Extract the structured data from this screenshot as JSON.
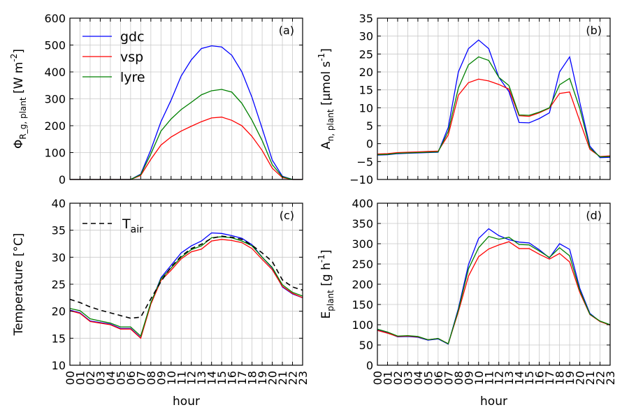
{
  "chart_data": [
    {
      "id": "a",
      "type": "line",
      "panel_label": "(a)",
      "ylabel": "Φ_{R_g, plant} [W m^{-2}]",
      "xlabel": "",
      "ylim": [
        0,
        600
      ],
      "yticks": [
        0,
        100,
        200,
        300,
        400,
        500,
        600
      ],
      "grid": true,
      "legend": "top-left",
      "x": [
        0,
        1,
        2,
        3,
        4,
        5,
        6,
        7,
        8,
        9,
        10,
        11,
        12,
        13,
        14,
        15,
        16,
        17,
        18,
        19,
        20,
        21,
        22,
        23
      ],
      "series": [
        {
          "name": "gdc",
          "color": "#0000ff",
          "values": [
            0,
            0,
            0,
            0,
            0,
            0,
            0,
            20,
            110,
            215,
            295,
            385,
            445,
            487,
            497,
            493,
            462,
            400,
            305,
            190,
            72,
            12,
            0,
            0
          ]
        },
        {
          "name": "vsp",
          "color": "#ff0000",
          "values": [
            0,
            0,
            0,
            0,
            0,
            0,
            0,
            15,
            75,
            128,
            158,
            180,
            198,
            215,
            229,
            232,
            220,
            200,
            160,
            108,
            42,
            7,
            0,
            0
          ]
        },
        {
          "name": "lyre",
          "color": "#008000",
          "values": [
            0,
            0,
            0,
            0,
            0,
            0,
            0,
            18,
            95,
            180,
            225,
            260,
            287,
            315,
            330,
            335,
            325,
            283,
            220,
            145,
            55,
            10,
            0,
            0
          ]
        }
      ]
    },
    {
      "id": "b",
      "type": "line",
      "panel_label": "(b)",
      "ylabel": "A_{n, plant} [μmol s^{-1}]",
      "xlabel": "",
      "ylim": [
        -10,
        35
      ],
      "yticks": [
        -10,
        -5,
        0,
        5,
        10,
        15,
        20,
        25,
        30,
        35
      ],
      "grid": true,
      "x": [
        0,
        1,
        2,
        3,
        4,
        5,
        6,
        7,
        8,
        9,
        10,
        11,
        12,
        13,
        14,
        15,
        16,
        17,
        18,
        19,
        20,
        21,
        22,
        23
      ],
      "series": [
        {
          "name": "gdc",
          "color": "#0000ff",
          "values": [
            -3.2,
            -3.1,
            -2.8,
            -2.7,
            -2.6,
            -2.5,
            -2.4,
            4.5,
            20,
            26.5,
            28.9,
            26.5,
            18.5,
            14.5,
            5.9,
            5.8,
            7,
            8.6,
            20,
            24.2,
            11.5,
            -0.7,
            -3.9,
            -3.8
          ]
        },
        {
          "name": "vsp",
          "color": "#ff0000",
          "values": [
            -2.9,
            -2.8,
            -2.5,
            -2.4,
            -2.3,
            -2.2,
            -2.1,
            2.4,
            13.5,
            17,
            18,
            17.5,
            16.5,
            15.2,
            7.8,
            7.6,
            8.6,
            9.9,
            14,
            14.4,
            6.3,
            -1.6,
            -3.6,
            -3.4
          ]
        },
        {
          "name": "lyre",
          "color": "#008000",
          "values": [
            -3.1,
            -3.0,
            -2.7,
            -2.6,
            -2.5,
            -2.4,
            -2.3,
            3.4,
            15.5,
            22,
            24.2,
            23.2,
            18.5,
            16.2,
            8,
            7.9,
            8.8,
            10,
            16.4,
            18.2,
            9.8,
            -1.2,
            -3.7,
            -3.6
          ]
        }
      ]
    },
    {
      "id": "c",
      "type": "line",
      "panel_label": "(c)",
      "ylabel": "Temperature [°C]",
      "xlabel": "hour",
      "ylim": [
        10,
        40
      ],
      "yticks": [
        10,
        15,
        20,
        25,
        30,
        35,
        40
      ],
      "grid": true,
      "legend": "top-left",
      "x": [
        0,
        1,
        2,
        3,
        4,
        5,
        6,
        7,
        8,
        9,
        10,
        11,
        12,
        13,
        14,
        15,
        16,
        17,
        18,
        19,
        20,
        21,
        22,
        23
      ],
      "series": [
        {
          "name": "gdc",
          "color": "#0000ff",
          "values": [
            20.2,
            19.7,
            18.2,
            17.9,
            17.6,
            16.8,
            16.8,
            15.1,
            21.5,
            26.2,
            28.5,
            30.8,
            32.1,
            33,
            34.5,
            34.4,
            34,
            33.5,
            32.3,
            30,
            28,
            24.5,
            23.2,
            22.5
          ]
        },
        {
          "name": "vsp",
          "color": "#ff0000",
          "values": [
            20.1,
            19.6,
            18.1,
            17.8,
            17.5,
            16.7,
            16.7,
            15.0,
            21.3,
            25.7,
            27.6,
            29.7,
            31,
            31.5,
            33,
            33.3,
            33.1,
            32.7,
            31.6,
            29.6,
            27.7,
            24.6,
            23.3,
            22.5
          ]
        },
        {
          "name": "lyre",
          "color": "#008000",
          "values": [
            20.5,
            20.1,
            18.6,
            18.2,
            17.8,
            17.1,
            17.1,
            15.4,
            21.6,
            26,
            28,
            30,
            31.4,
            32.1,
            33.6,
            33.8,
            33.6,
            33,
            32.1,
            30,
            28.1,
            24.9,
            23.5,
            22.8
          ]
        },
        {
          "name": "T_air",
          "color": "#000000",
          "dashed": true,
          "values": [
            22.2,
            21.6,
            20.8,
            20.2,
            19.7,
            19.2,
            18.7,
            18.9,
            22.3,
            25.5,
            28.2,
            30.2,
            31.6,
            32.4,
            33.5,
            33.9,
            33.7,
            33.3,
            32.2,
            30.8,
            29.2,
            25.8,
            24.5,
            23.9
          ]
        }
      ]
    },
    {
      "id": "d",
      "type": "line",
      "panel_label": "(d)",
      "ylabel": "E_{plant} [g h^{-1}]",
      "xlabel": "hour",
      "ylim": [
        0,
        400
      ],
      "yticks": [
        0,
        50,
        100,
        150,
        200,
        250,
        300,
        350,
        400
      ],
      "grid": true,
      "x": [
        0,
        1,
        2,
        3,
        4,
        5,
        6,
        7,
        8,
        9,
        10,
        11,
        12,
        13,
        14,
        15,
        16,
        17,
        18,
        19,
        20,
        21,
        22,
        23
      ],
      "series": [
        {
          "name": "gdc",
          "color": "#0000ff",
          "values": [
            87,
            80,
            70,
            71,
            69,
            62,
            65,
            52,
            140,
            248,
            313,
            337,
            320,
            310,
            304,
            302,
            285,
            265,
            300,
            286,
            190,
            128,
            108,
            100
          ]
        },
        {
          "name": "vsp",
          "color": "#ff0000",
          "values": [
            86,
            79,
            71,
            72,
            70,
            63,
            66,
            53,
            132,
            220,
            268,
            287,
            297,
            305,
            288,
            288,
            274,
            262,
            276,
            255,
            180,
            125,
            108,
            99
          ]
        },
        {
          "name": "lyre",
          "color": "#008000",
          "values": [
            89,
            82,
            72,
            73,
            71,
            63,
            66,
            53,
            136,
            238,
            290,
            318,
            311,
            316,
            298,
            297,
            282,
            266,
            290,
            270,
            185,
            126,
            109,
            100
          ]
        }
      ]
    }
  ],
  "x_tick_labels": [
    "00",
    "01",
    "02",
    "03",
    "04",
    "05",
    "06",
    "07",
    "08",
    "09",
    "10",
    "11",
    "12",
    "13",
    "14",
    "15",
    "16",
    "17",
    "18",
    "19",
    "20",
    "21",
    "22",
    "23"
  ],
  "legend_c": {
    "name": "T_air"
  }
}
